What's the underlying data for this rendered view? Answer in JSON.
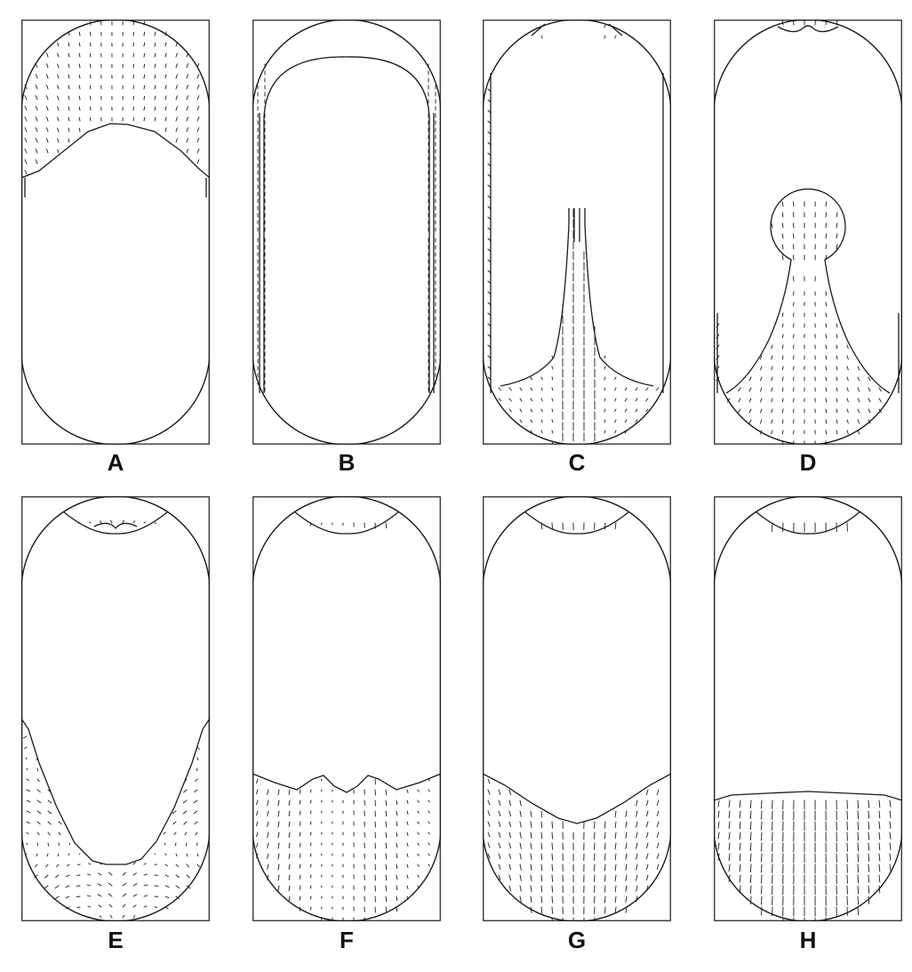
{
  "panels": [
    {
      "label": "A",
      "fluid": "top"
    },
    {
      "label": "B",
      "fluid": "shell"
    },
    {
      "label": "C",
      "fluid": "jet"
    },
    {
      "label": "D",
      "fluid": "bulb"
    },
    {
      "label": "E",
      "fluid": "bottom-deep"
    },
    {
      "label": "F",
      "fluid": "bottom-waves"
    },
    {
      "label": "G",
      "fluid": "bottom-v"
    },
    {
      "label": "H",
      "fluid": "bottom-flat"
    }
  ],
  "colors": {
    "line": "#1a1a1a",
    "background": "#ffffff"
  }
}
